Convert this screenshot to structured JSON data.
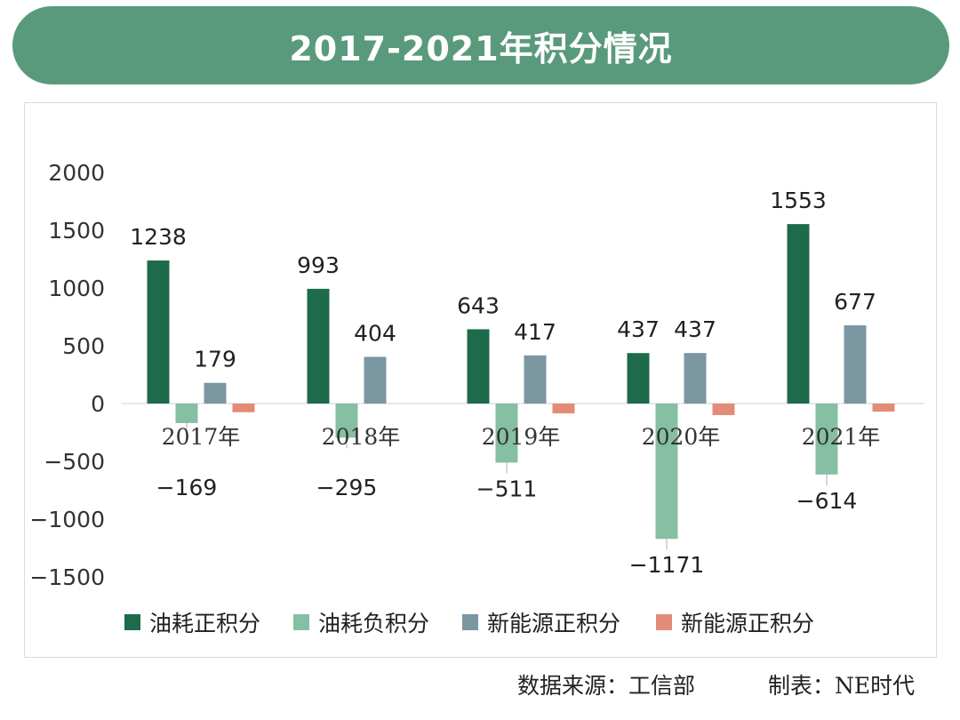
{
  "chart_data": {
    "type": "bar",
    "title": "2017-2021年积分情况",
    "categories": [
      "2017年",
      "2018年",
      "2019年",
      "2020年",
      "2021年"
    ],
    "series": [
      {
        "name": "油耗正积分",
        "color": "#1e6b4c",
        "values": [
          1238,
          993,
          643,
          437,
          1553
        ]
      },
      {
        "name": "油耗负积分",
        "color": "#86bfa3",
        "values": [
          -169,
          -295,
          -511,
          -1171,
          -614
        ]
      },
      {
        "name": "新能源正积分",
        "color": "#7a97a2",
        "values": [
          179,
          404,
          417,
          437,
          677
        ]
      },
      {
        "name": "新能源正积分",
        "color": "#e28c78",
        "values": [
          -75,
          null,
          -85,
          -100,
          -70
        ]
      }
    ],
    "data_labels": [
      [
        "1238",
        "-169",
        "179",
        null
      ],
      [
        "993",
        "-295",
        "404",
        null
      ],
      [
        "643",
        "-511",
        "417",
        null
      ],
      [
        "437",
        "-1171",
        "437",
        null
      ],
      [
        "1553",
        "-614",
        "677",
        null
      ]
    ],
    "yticks": [
      2000,
      1500,
      1000,
      500,
      0,
      -500,
      -1000,
      -1500
    ],
    "ylim": [
      -1500,
      2000
    ],
    "xlabel": "",
    "ylabel": "",
    "legend_position": "bottom",
    "grid": false
  },
  "footer": {
    "source": "数据来源：工信部",
    "maker": "制表：NE时代"
  }
}
